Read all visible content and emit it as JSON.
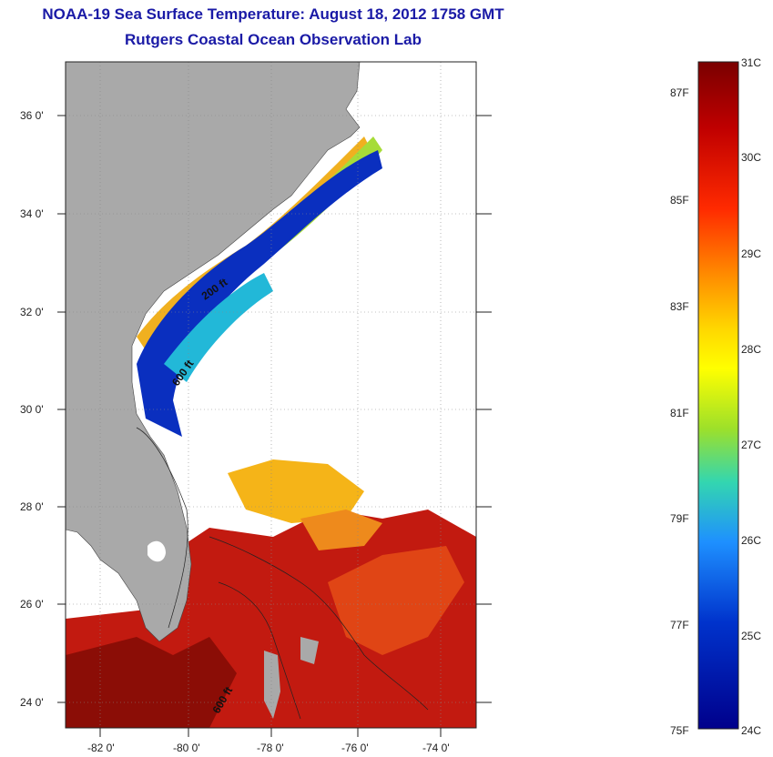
{
  "title": "NOAA-19 Sea Surface Temperature:  August 18, 2012 1758 GMT",
  "subtitle": "Rutgers Coastal Ocean Observation Lab",
  "map": {
    "lat_ticks": [
      "36 0'",
      "34 0'",
      "32 0'",
      "30 0'",
      "28 0'",
      "26 0'",
      "24 0'"
    ],
    "lon_ticks": [
      "-82 0'",
      "-80 0'",
      "-78 0'",
      "-76 0'",
      "-74 0'"
    ],
    "contour_labels": [
      "200 ft",
      "600 ft",
      "600 ft"
    ],
    "land_color": "#a9a9a9",
    "ocean_nodata_color": "#ffffff"
  },
  "colorbar": {
    "celsius_labels": [
      "31C",
      "30C",
      "29C",
      "28C",
      "27C",
      "26C",
      "25C",
      "24C"
    ],
    "fahrenheit_labels": [
      "87F",
      "85F",
      "83F",
      "81F",
      "79F",
      "77F",
      "75F"
    ],
    "colors": [
      "#7a0000",
      "#e41a1c",
      "#ff7f00",
      "#ffff00",
      "#39e5c7",
      "#1e90ff",
      "#0000cd",
      "#00008b"
    ]
  }
}
